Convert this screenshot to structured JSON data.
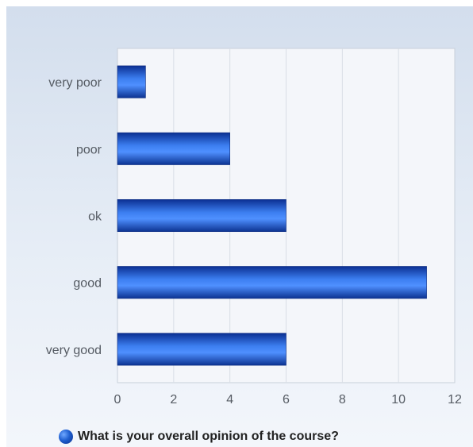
{
  "chart_data": {
    "type": "bar",
    "orientation": "horizontal",
    "categories": [
      "very poor",
      "poor",
      "ok",
      "good",
      "very good"
    ],
    "series": [
      {
        "name": "What is your overall opinion of the course?",
        "values": [
          1,
          4,
          6,
          11,
          6
        ]
      }
    ],
    "xlim": [
      0,
      12
    ],
    "x_ticks": [
      0,
      2,
      4,
      6,
      8,
      10,
      12
    ],
    "grid": true,
    "legend_position": "bottom",
    "bar_color": "#1f5fd0"
  }
}
